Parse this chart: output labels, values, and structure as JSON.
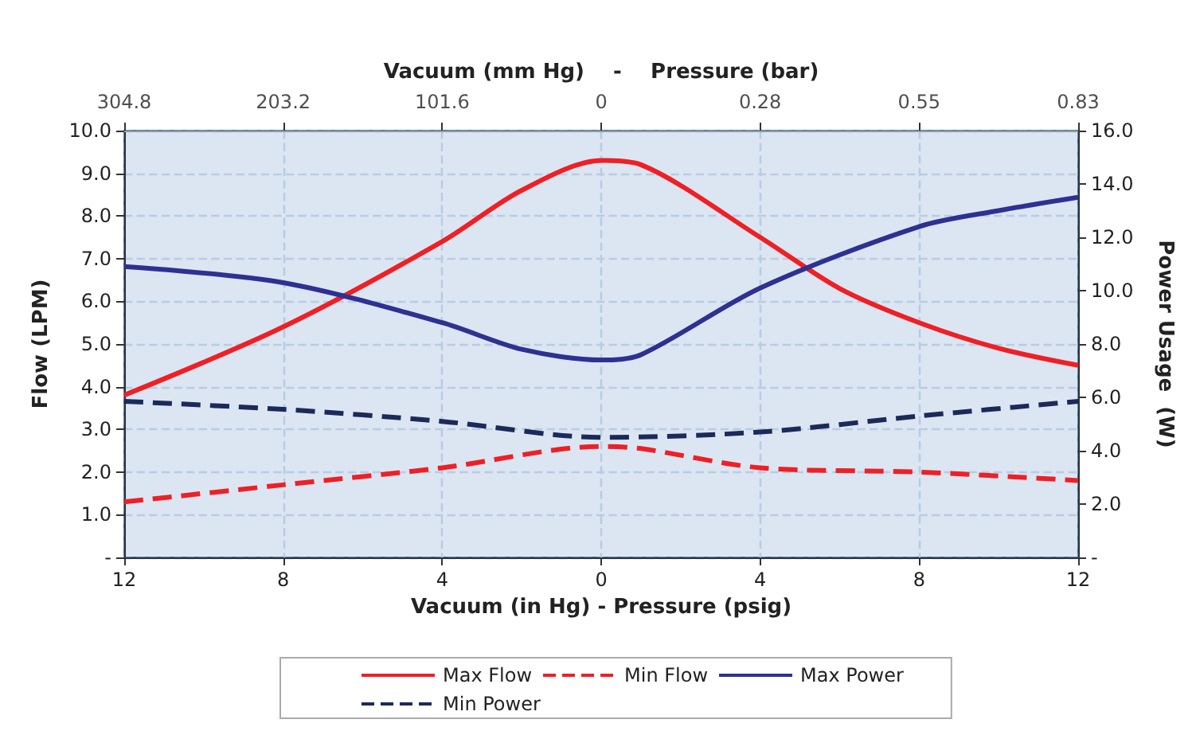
{
  "chart_data": {
    "type": "line",
    "xlabel": "Vacuum (in Hg) - Pressure (psig)",
    "x2label": "Vacuum (mm Hg)    -    Pressure (bar)",
    "ylabel": "Flow (LPM)",
    "y2label": "Power Usage  (W)",
    "xlim": [
      -12,
      12
    ],
    "xticks": [
      {
        "value": -12,
        "label": "12"
      },
      {
        "value": -8,
        "label": "8"
      },
      {
        "value": -4,
        "label": "4"
      },
      {
        "value": 0,
        "label": "0"
      },
      {
        "value": 4,
        "label": "4"
      },
      {
        "value": 8,
        "label": "8"
      },
      {
        "value": 12,
        "label": "12"
      }
    ],
    "annotations": [
      "304.8",
      "203.2",
      "101.6",
      "0",
      "0.28",
      "0.55",
      "0.83"
    ],
    "ylim": [
      0,
      10
    ],
    "yticks": [
      {
        "value": 0,
        "label": "-"
      },
      {
        "value": 1,
        "label": "1.0"
      },
      {
        "value": 2,
        "label": "2.0"
      },
      {
        "value": 3,
        "label": "3.0"
      },
      {
        "value": 4,
        "label": "4.0"
      },
      {
        "value": 5,
        "label": "5.0"
      },
      {
        "value": 6,
        "label": "6.0"
      },
      {
        "value": 7,
        "label": "7.0"
      },
      {
        "value": 8,
        "label": "8.0"
      },
      {
        "value": 9,
        "label": "9.0"
      },
      {
        "value": 10,
        "label": "10.0"
      }
    ],
    "y2lim": [
      0,
      16
    ],
    "y2ticks": [
      {
        "value": 0,
        "label": "-"
      },
      {
        "value": 2,
        "label": "2.0"
      },
      {
        "value": 4,
        "label": "4.0"
      },
      {
        "value": 6,
        "label": "6.0"
      },
      {
        "value": 8,
        "label": "8.0"
      },
      {
        "value": 10,
        "label": "10.0"
      },
      {
        "value": 12,
        "label": "12.0"
      },
      {
        "value": 14,
        "label": "14.0"
      },
      {
        "value": 16,
        "label": "16.0"
      }
    ],
    "grid": true,
    "legend": "bottom",
    "marker": "none",
    "series": [
      {
        "name": "Max Flow",
        "color": "#ee2026",
        "line_style": "solid",
        "x": [
          -12,
          -8,
          -4,
          -2,
          0,
          1,
          4,
          6,
          8,
          10,
          12
        ],
        "values": [
          3.8,
          5.4,
          7.4,
          8.6,
          9.3,
          9.2,
          7.5,
          6.3,
          5.5,
          4.9,
          4.5
        ]
      },
      {
        "name": "Min Flow",
        "color": "#ee2026",
        "line_style": "dashed",
        "x": [
          -12,
          -8,
          -4,
          0,
          1,
          4,
          8,
          12
        ],
        "values": [
          1.3,
          1.7,
          2.1,
          2.6,
          2.55,
          2.1,
          2.0,
          1.8
        ]
      },
      {
        "name": "Max Power",
        "color": "#2e3192",
        "line_style": "solid",
        "axis": "y2",
        "x": [
          -12,
          -8,
          -4,
          -2,
          0,
          1,
          4,
          8,
          10,
          12
        ],
        "values": [
          10.9,
          10.3,
          8.8,
          7.8,
          7.4,
          7.6,
          10.1,
          12.4,
          13.0,
          13.5
        ]
      },
      {
        "name": "Min Power",
        "color": "#1b2a5a",
        "line_style": "dashed",
        "axis": "y2",
        "x": [
          -12,
          -8,
          -4,
          0,
          4,
          8,
          12
        ],
        "values": [
          5.85,
          5.55,
          5.1,
          4.5,
          4.7,
          5.3,
          5.85
        ]
      }
    ]
  }
}
